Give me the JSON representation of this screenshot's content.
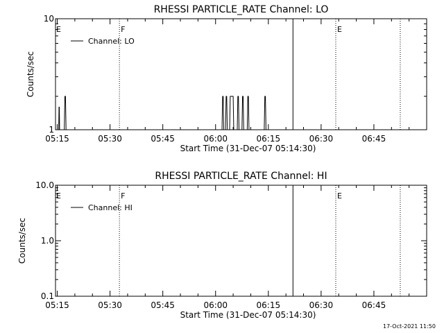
{
  "chart_data": [
    {
      "type": "line",
      "title": "RHESSI PARTICLE_RATE Channel: LO",
      "xlabel": "Start Time (31-Dec-07 05:14:30)",
      "ylabel": "Counts/sec",
      "yscale": "log",
      "ylim": [
        1,
        10
      ],
      "y_ticks": [
        "1",
        "10"
      ],
      "xlim": [
        "05:14:30",
        "07:00:00"
      ],
      "x_ticks": [
        "05:15",
        "05:30",
        "05:45",
        "06:00",
        "06:15",
        "06:30",
        "06:45"
      ],
      "legend": {
        "label": "Channel: LO",
        "placement": "top-left"
      },
      "series": [
        {
          "name": "Channel: LO",
          "x": [
            "05:14:30",
            "05:15:25",
            "05:15:30",
            "05:15:35",
            "05:15:40",
            "05:15:45",
            "05:17:00",
            "05:17:10",
            "05:17:20",
            "05:17:30",
            "05:17:40",
            "06:01:50",
            "06:02:00",
            "06:02:10",
            "06:02:20",
            "06:02:30",
            "06:02:50",
            "06:03:00",
            "06:03:10",
            "06:03:20",
            "06:03:30",
            "06:04:00",
            "06:04:10",
            "06:04:20",
            "06:04:30",
            "06:04:40",
            "06:04:50",
            "06:05:00",
            "06:05:10",
            "06:05:20",
            "06:06:10",
            "06:06:20",
            "06:06:30",
            "06:06:40",
            "06:06:50",
            "06:07:30",
            "06:07:40",
            "06:07:50",
            "06:08:00",
            "06:08:10",
            "06:09:00",
            "06:09:10",
            "06:09:20",
            "06:09:30",
            "06:09:40",
            "06:13:50",
            "06:14:00",
            "06:14:10",
            "06:14:20",
            "06:14:30",
            "07:00:00"
          ],
          "y": [
            1,
            1,
            1.6,
            1.6,
            1,
            1,
            1,
            2,
            2,
            1,
            1,
            1,
            2,
            2,
            1,
            1,
            1,
            2,
            2,
            1,
            1,
            1,
            2,
            2,
            2,
            2,
            2,
            2,
            1,
            1,
            1,
            2,
            2,
            1,
            1,
            1,
            2,
            2,
            1,
            1,
            1,
            2,
            2,
            1,
            1,
            1,
            2,
            2,
            1,
            1,
            1
          ]
        }
      ],
      "vlines": [
        {
          "x": "05:32:40",
          "style": "dotted",
          "label": "F"
        },
        {
          "x": "06:22:00",
          "style": "solid",
          "label": ""
        },
        {
          "x": "06:34:10",
          "style": "dotted",
          "label": "E"
        },
        {
          "x": "06:52:30",
          "style": "dotted",
          "label": ""
        }
      ],
      "edge_label": "E"
    },
    {
      "type": "line",
      "title": "RHESSI PARTICLE_RATE Channel: HI",
      "xlabel": "Start Time (31-Dec-07 05:14:30)",
      "ylabel": "Counts/sec",
      "yscale": "log",
      "ylim": [
        0.1,
        10
      ],
      "y_ticks": [
        "0.1",
        "1.0",
        "10.0"
      ],
      "xlim": [
        "05:14:30",
        "07:00:00"
      ],
      "x_ticks": [
        "05:15",
        "05:30",
        "05:45",
        "06:00",
        "06:15",
        "06:30",
        "06:45"
      ],
      "legend": {
        "label": "Channel: HI",
        "placement": "top-left"
      },
      "series": [
        {
          "name": "Channel: HI",
          "x": [],
          "y": []
        }
      ],
      "vlines": [
        {
          "x": "05:32:40",
          "style": "dotted",
          "label": "F"
        },
        {
          "x": "06:22:00",
          "style": "solid",
          "label": ""
        },
        {
          "x": "06:34:10",
          "style": "dotted",
          "label": "E"
        },
        {
          "x": "06:52:30",
          "style": "dotted",
          "label": ""
        }
      ],
      "edge_label": "E"
    }
  ],
  "footer": {
    "timestamp": "17-Oct-2021 11:50"
  }
}
